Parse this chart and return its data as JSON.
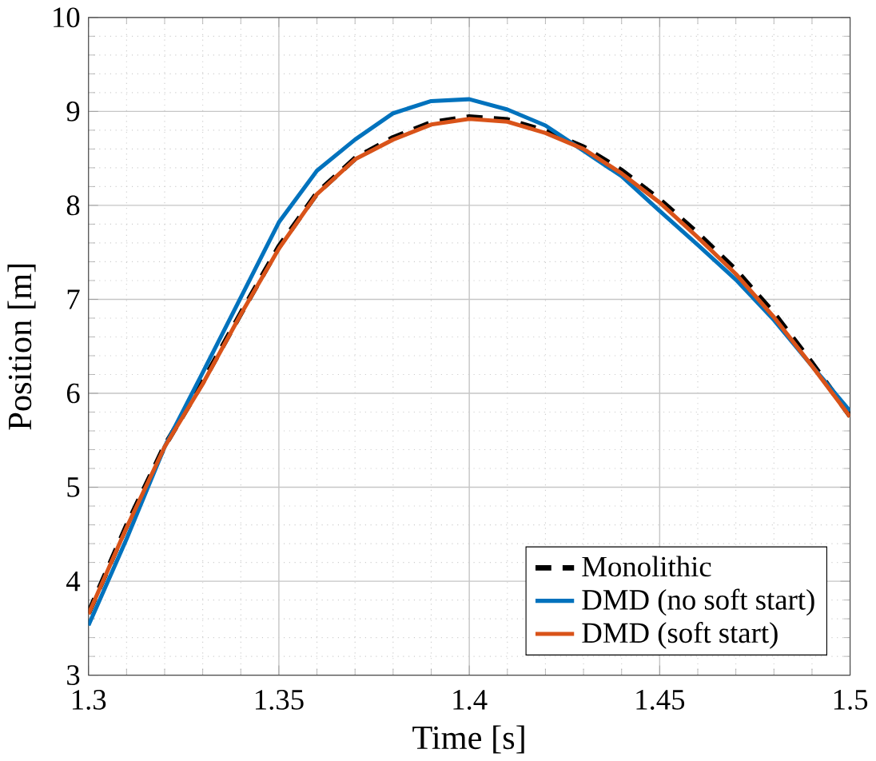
{
  "chart_data": {
    "type": "line",
    "xlabel": "Time [s]",
    "ylabel": "Position [m]",
    "x": [
      1.3,
      1.31,
      1.32,
      1.33,
      1.34,
      1.35,
      1.36,
      1.37,
      1.38,
      1.39,
      1.4,
      1.41,
      1.42,
      1.43,
      1.44,
      1.45,
      1.46,
      1.47,
      1.48,
      1.49,
      1.5
    ],
    "series": [
      {
        "name": "Monolithic",
        "color": "#000000",
        "line_style": "dashed",
        "values": [
          3.66,
          4.59,
          5.44,
          6.12,
          6.85,
          7.56,
          8.13,
          8.5,
          8.72,
          8.88,
          8.94,
          8.91,
          8.79,
          8.62,
          8.37,
          8.06,
          7.7,
          7.31,
          6.85,
          6.32,
          5.76
        ]
      },
      {
        "name": "DMD (no soft start)",
        "color": "#0072bd",
        "line_style": "solid",
        "values": [
          3.53,
          4.45,
          5.43,
          6.22,
          7.02,
          7.82,
          8.37,
          8.7,
          8.98,
          9.11,
          9.13,
          9.02,
          8.85,
          8.58,
          8.31,
          7.94,
          7.58,
          7.21,
          6.78,
          6.29,
          5.81
        ]
      },
      {
        "name": "DMD (soft start)",
        "color": "#d95319",
        "line_style": "solid",
        "values": [
          3.65,
          4.57,
          5.43,
          6.1,
          6.84,
          7.54,
          8.12,
          8.49,
          8.7,
          8.86,
          8.92,
          8.89,
          8.77,
          8.6,
          8.34,
          8.03,
          7.66,
          7.27,
          6.81,
          6.29,
          5.75
        ]
      }
    ],
    "xlim": [
      1.3,
      1.5
    ],
    "xticks": [
      1.3,
      1.35,
      1.4,
      1.45,
      1.5
    ],
    "ylim": [
      3,
      10
    ],
    "yticks": [
      3,
      4,
      5,
      6,
      7,
      8,
      9,
      10
    ],
    "grid": true,
    "legend": "bottom right"
  }
}
